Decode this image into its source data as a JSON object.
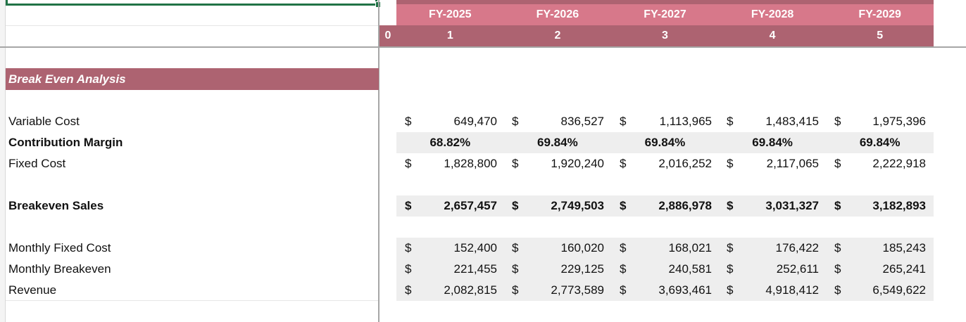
{
  "header": {
    "years": [
      "FY-2025",
      "FY-2026",
      "FY-2027",
      "FY-2028",
      "FY-2029"
    ],
    "index_zero": "0",
    "indices": [
      "1",
      "2",
      "3",
      "4",
      "5"
    ]
  },
  "section": {
    "title": "Break Even Analysis"
  },
  "currency_symbol": "$",
  "rows": {
    "variable_cost": {
      "label": "Variable Cost",
      "values": [
        "649,470",
        "836,527",
        "1,113,965",
        "1,483,415",
        "1,975,396"
      ]
    },
    "contribution_margin": {
      "label": "Contribution Margin",
      "values": [
        "68.82%",
        "69.84%",
        "69.84%",
        "69.84%",
        "69.84%"
      ]
    },
    "fixed_cost": {
      "label": "Fixed Cost",
      "values": [
        "1,828,800",
        "1,920,240",
        "2,016,252",
        "2,117,065",
        "2,222,918"
      ]
    },
    "breakeven_sales": {
      "label": "Breakeven Sales",
      "values": [
        "2,657,457",
        "2,749,503",
        "2,886,978",
        "3,031,327",
        "3,182,893"
      ]
    },
    "monthly_fixed_cost": {
      "label": "Monthly Fixed Cost",
      "values": [
        "152,400",
        "160,020",
        "168,021",
        "176,422",
        "185,243"
      ]
    },
    "monthly_breakeven": {
      "label": "Monthly Breakeven",
      "values": [
        "221,455",
        "229,125",
        "240,581",
        "252,611",
        "265,241"
      ]
    },
    "revenue": {
      "label": "Revenue",
      "values": [
        "2,082,815",
        "2,773,589",
        "3,693,461",
        "4,918,412",
        "6,549,622"
      ]
    }
  },
  "colors": {
    "header_pink": "#d7788a",
    "header_dark": "#ad6371",
    "section_bar": "#ad6371",
    "row_shade": "#eeeeee",
    "selection_green": "#217346"
  }
}
